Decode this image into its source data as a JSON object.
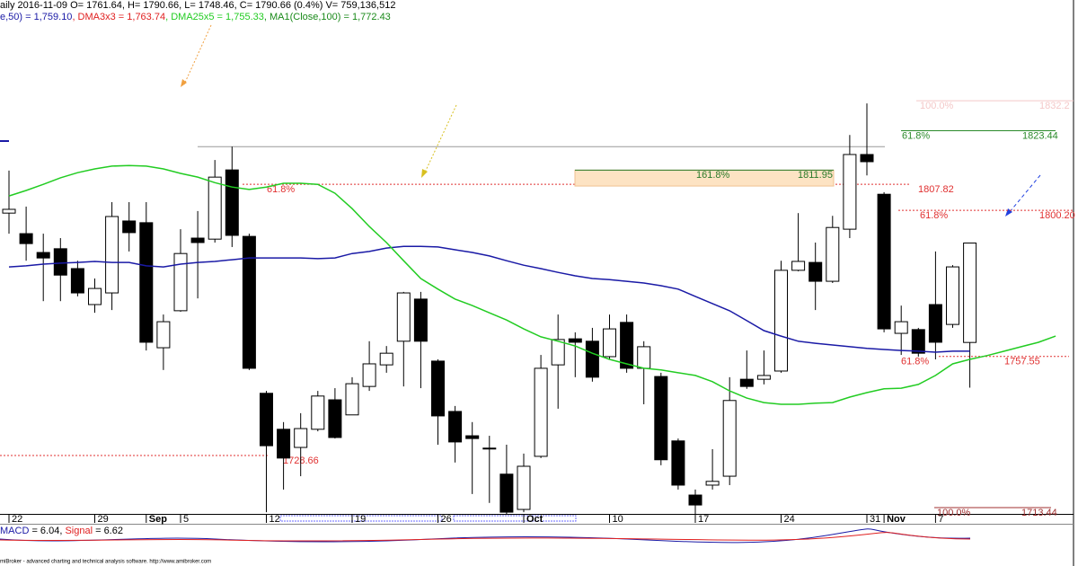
{
  "header": {
    "line1": "aily 2016-11-09 O= 1761.64, H= 1790.66, L= 1748.46, C= 1790.66 (0.4%) V= 759,136,512",
    "line2": [
      {
        "text": "e,50) = 1,759.10",
        "color": "#1a1aa6"
      },
      {
        "text": ", DMA3x3 = 1,763.74",
        "color": "#e02020"
      },
      {
        "text": ", DMA25x5 = 1,755.33",
        "color": "#22cc22"
      },
      {
        "text": ", MA1(Close,100) = 1,772.43",
        "color": "#1a8a1a"
      }
    ]
  },
  "chart_data": {
    "type": "candlestick",
    "categories": [
      "22",
      null,
      null,
      null,
      null,
      "29",
      null,
      null,
      "Sep",
      null,
      "5",
      null,
      null,
      null,
      null,
      "12",
      null,
      null,
      null,
      null,
      "19",
      null,
      null,
      null,
      null,
      "26",
      null,
      null,
      null,
      null,
      "Oct",
      null,
      null,
      null,
      null,
      "10",
      null,
      null,
      null,
      null,
      "17",
      null,
      null,
      null,
      null,
      "24",
      null,
      null,
      null,
      null,
      "31",
      "Nov",
      null,
      null,
      "7",
      null,
      null,
      null,
      null,
      null,
      null,
      null
    ],
    "bold_categories": [
      "Sep",
      "Oct",
      "Nov"
    ],
    "open": [
      1799.4,
      1793.4,
      1787.9,
      1789.0,
      1783.2,
      1772.7,
      1776.1,
      1797.1,
      1796.6,
      1760.1,
      1770.9,
      1792.1,
      1791.8,
      1812.0,
      1792.6,
      1746.8,
      1736.3,
      1731.0,
      1736.3,
      1744.9,
      1740.5,
      1748.8,
      1755.1,
      1762.0,
      1774.3,
      1756.2,
      1741.5,
      1734.4,
      1730.8,
      1723.2,
      1712.9,
      1728.4,
      1755.1,
      1762.7,
      1762.0,
      1757.5,
      1767.5,
      1754.1,
      1751.7,
      1732.9,
      1717.1,
      1720.0,
      1722.6,
      1750.9,
      1750.9,
      1753.3,
      1782.7,
      1785.0,
      1779.5,
      1794.7,
      1816.5,
      1804.9,
      1764.3,
      1765.4,
      1772.7,
      1766.9,
      1761.64,
      null,
      null,
      null,
      null,
      null
    ],
    "high": [
      1811.8,
      1801.3,
      1793.4,
      1792.1,
      1785.5,
      1780.3,
      1802.6,
      1802.6,
      1802.6,
      1769.8,
      1794.7,
      1800.0,
      1814.9,
      1818.8,
      1793.4,
      1747.5,
      1738.4,
      1741.0,
      1747.5,
      1748.3,
      1751.5,
      1762.0,
      1760.6,
      1776.4,
      1776.4,
      1756.7,
      1743.1,
      1738.4,
      1734.4,
      1731.8,
      1729.2,
      1758.0,
      1769.8,
      1764.6,
      1765.9,
      1769.8,
      1769.8,
      1762.0,
      1752.8,
      1733.6,
      1718.7,
      1730.5,
      1751.5,
      1759.3,
      1759.3,
      1785.5,
      1799.4,
      1790.8,
      1798.6,
      1822.2,
      1831.4,
      1805.5,
      1772.4,
      1765.9,
      1788.2,
      1784.2,
      1790.66,
      null,
      null,
      null,
      null,
      null
    ],
    "low": [
      1793.4,
      1785.5,
      1773.7,
      1773.7,
      1775.1,
      1770.3,
      1771.1,
      1788.2,
      1759.3,
      1753.6,
      1770.6,
      1774.5,
      1790.8,
      1789.5,
      1753.6,
      1712.1,
      1718.7,
      1722.6,
      1735.7,
      1733.6,
      1740.5,
      1747.5,
      1752.8,
      1748.8,
      1748.3,
      1731.8,
      1726.6,
      1717.4,
      1714.8,
      1711.6,
      1712.1,
      1727.9,
      1742.3,
      1751.5,
      1750.2,
      1756.7,
      1752.8,
      1743.6,
      1725.8,
      1718.7,
      1711.6,
      1718.7,
      1720.0,
      1748.1,
      1749.4,
      1752.8,
      1782.4,
      1771.1,
      1779.0,
      1792.1,
      1810.4,
      1764.6,
      1758.0,
      1757.5,
      1756.7,
      1765.9,
      1748.46,
      null,
      null,
      null,
      null,
      null
    ],
    "close": [
      1800.5,
      1790.5,
      1786.3,
      1781.3,
      1776.1,
      1777.4,
      1798.4,
      1793.7,
      1761.7,
      1767.7,
      1787.6,
      1790.8,
      1809.9,
      1792.9,
      1754.1,
      1731.5,
      1727.9,
      1736.5,
      1746.0,
      1733.9,
      1749.6,
      1755.4,
      1758.5,
      1776.1,
      1762.0,
      1740.2,
      1732.6,
      1733.6,
      1730.8,
      1712.1,
      1725.5,
      1754.1,
      1762.5,
      1761.7,
      1751.5,
      1765.6,
      1754.1,
      1760.4,
      1727.4,
      1720.0,
      1714.2,
      1721.1,
      1744.7,
      1748.8,
      1752.0,
      1782.7,
      1785.3,
      1779.5,
      1795.2,
      1816.5,
      1814.4,
      1765.6,
      1767.7,
      1758.5,
      1761.7,
      1783.7,
      1790.66,
      null,
      null,
      null,
      null,
      null
    ],
    "up_color": "#ffffff",
    "down_color": "#000000",
    "series": [
      {
        "color": "#1a1aa6",
        "values": [
          1783.7,
          1784.0,
          1784.5,
          1784.8,
          1785.0,
          1785.3,
          1785.0,
          1785.0,
          1784.0,
          1783.7,
          1784.5,
          1785.0,
          1785.3,
          1785.8,
          1786.3,
          1786.3,
          1786.3,
          1786.3,
          1786.1,
          1786.3,
          1787.6,
          1788.2,
          1789.2,
          1789.7,
          1789.7,
          1789.5,
          1788.7,
          1787.9,
          1786.9,
          1785.5,
          1784.2,
          1783.2,
          1782.1,
          1781.1,
          1780.3,
          1780.0,
          1779.5,
          1779.0,
          1778.2,
          1777.2,
          1775.1,
          1773.0,
          1770.9,
          1768.0,
          1765.1,
          1763.5,
          1762.0,
          1761.4,
          1760.9,
          1760.4,
          1759.9,
          1759.6,
          1759.3,
          1759.1,
          1758.8,
          1759.1,
          1759.1,
          null,
          null,
          null,
          null,
          null
        ]
      },
      {
        "color": "#22cc22",
        "values": [
          1804.4,
          1806.0,
          1807.8,
          1809.7,
          1811.2,
          1812.3,
          1813.1,
          1813.3,
          1813.1,
          1812.3,
          1811.0,
          1809.9,
          1808.3,
          1807.0,
          1806.3,
          1807.0,
          1808.1,
          1808.1,
          1807.8,
          1805.2,
          1800.7,
          1795.5,
          1790.8,
          1785.5,
          1780.3,
          1777.2,
          1774.3,
          1772.4,
          1770.3,
          1768.2,
          1765.6,
          1763.3,
          1762.0,
          1760.6,
          1758.5,
          1756.7,
          1755.4,
          1754.1,
          1753.6,
          1752.8,
          1752.0,
          1750.2,
          1747.5,
          1745.4,
          1744.1,
          1743.6,
          1743.6,
          1743.9,
          1744.1,
          1745.7,
          1747.0,
          1748.1,
          1748.3,
          1749.4,
          1752.0,
          1755.4,
          1756.7,
          1757.8,
          1759.1,
          1760.4,
          1761.7,
          1763.5
        ]
      }
    ],
    "ylim": [
      1711.6,
      1861.6
    ],
    "levels": [
      {
        "value": 1818.8,
        "color": "#999999",
        "style": "solid"
      },
      {
        "value": 1807.82,
        "color": "#e03030",
        "style": "dotted",
        "percent": "61.8%",
        "value_label": "1807.82"
      },
      {
        "value": 1800.2,
        "color": "#e03030",
        "style": "dotted",
        "percent": "61.8%",
        "value_label": "1800.20"
      },
      {
        "value": 1823.44,
        "color": "#2a8a2a",
        "style": "solid",
        "percent": "61.8%",
        "value_label": "1823.44"
      },
      {
        "value": 1757.55,
        "color": "#e03030",
        "style": "dotted",
        "percent": "61.8%",
        "value_label": "1757.55"
      },
      {
        "value": 1728.66,
        "color": "#e03030",
        "style": "dotted",
        "value_label": "1728.66"
      },
      {
        "value": 1832.2,
        "color": "#f4c8c8",
        "style": "solid",
        "percent": "100.0%",
        "value_label": "1832.2"
      },
      {
        "value": 1713.44,
        "color": "#a03030",
        "style": "solid",
        "percent": "100.0%",
        "value_label": "1713.44"
      }
    ],
    "zone": {
      "from": 1811.95,
      "to": 1807.3,
      "percent": "161.8%",
      "value_label": "1811.95",
      "fill": "#fde3c3",
      "color": "#2a7a2a"
    }
  },
  "macd": [
    {
      "text": "MACD",
      "color": "#1a1aa6"
    },
    {
      "text": " = 6.04, ",
      "color": "#000000"
    },
    {
      "text": "Signal",
      "color": "#e02020"
    },
    {
      "text": " = 6.62",
      "color": "#000000"
    }
  ],
  "footer": "miBroker - advanced charting and technical analysis software. http://www.amibroker.com"
}
